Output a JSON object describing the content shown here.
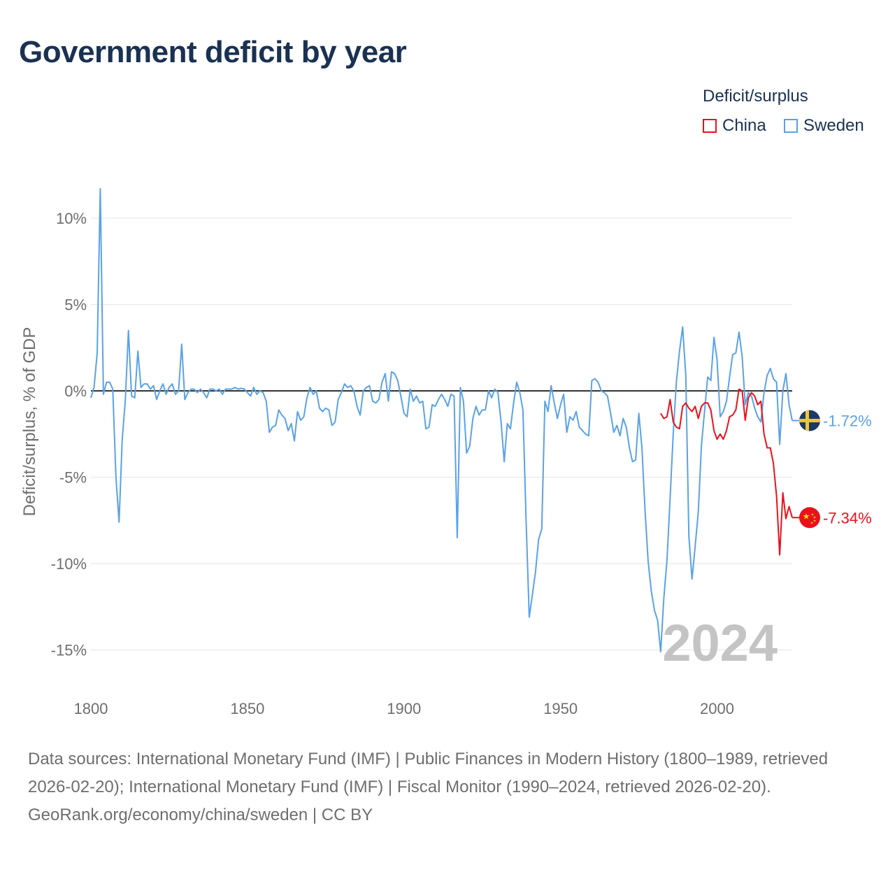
{
  "chart_data": {
    "type": "line",
    "title": "Government deficit by year",
    "ylabel": "Deficit/surplus, % of GDP",
    "xlabel": "",
    "xlim": [
      1800,
      2024
    ],
    "ylim": [
      -16.5,
      12
    ],
    "x_ticks": [
      1800,
      1850,
      1900,
      1950,
      2000
    ],
    "y_ticks": [
      10,
      5,
      0,
      -5,
      -10,
      -15
    ],
    "y_tick_labels": [
      "10%",
      "5%",
      "0%",
      "-5%",
      "-10%",
      "-15%"
    ],
    "legend_title": "Deficit/surplus",
    "watermark_year": "2024",
    "series": [
      {
        "name": "Sweden",
        "color": "#5aa2e6",
        "end_label": "-1.72%",
        "flag_icon": "sweden-flag-icon",
        "points": [
          [
            1800,
            -0.4
          ],
          [
            1801,
            0.2
          ],
          [
            1802,
            2.2
          ],
          [
            1803,
            11.7
          ],
          [
            1804,
            -0.2
          ],
          [
            1805,
            0.5
          ],
          [
            1806,
            0.5
          ],
          [
            1807,
            0.1
          ],
          [
            1808,
            -5.0
          ],
          [
            1809,
            -7.6
          ],
          [
            1810,
            -2.8
          ],
          [
            1811,
            -0.5
          ],
          [
            1812,
            3.5
          ],
          [
            1813,
            -0.3
          ],
          [
            1814,
            -0.4
          ],
          [
            1815,
            2.3
          ],
          [
            1816,
            0.2
          ],
          [
            1817,
            0.4
          ],
          [
            1818,
            0.4
          ],
          [
            1819,
            0.1
          ],
          [
            1820,
            0.3
          ],
          [
            1821,
            -0.5
          ],
          [
            1822,
            0.0
          ],
          [
            1823,
            0.4
          ],
          [
            1824,
            -0.2
          ],
          [
            1825,
            0.2
          ],
          [
            1826,
            0.4
          ],
          [
            1827,
            -0.2
          ],
          [
            1828,
            0.0
          ],
          [
            1829,
            2.7
          ],
          [
            1830,
            -0.5
          ],
          [
            1831,
            -0.1
          ],
          [
            1832,
            0.1
          ],
          [
            1833,
            0.1
          ],
          [
            1834,
            -0.1
          ],
          [
            1835,
            0.1
          ],
          [
            1836,
            -0.1
          ],
          [
            1837,
            -0.4
          ],
          [
            1838,
            0.1
          ],
          [
            1839,
            0.1
          ],
          [
            1840,
            0.0
          ],
          [
            1841,
            0.1
          ],
          [
            1842,
            -0.2
          ],
          [
            1843,
            0.1
          ],
          [
            1844,
            0.1
          ],
          [
            1845,
            0.1
          ],
          [
            1846,
            0.2
          ],
          [
            1847,
            0.1
          ],
          [
            1848,
            0.15
          ],
          [
            1849,
            0.1
          ],
          [
            1850,
            -0.1
          ],
          [
            1851,
            -0.3
          ],
          [
            1852,
            0.2
          ],
          [
            1853,
            -0.2
          ],
          [
            1854,
            0.0
          ],
          [
            1855,
            -0.1
          ],
          [
            1856,
            -0.6
          ],
          [
            1857,
            -2.4
          ],
          [
            1858,
            -2.1
          ],
          [
            1859,
            -2.0
          ],
          [
            1860,
            -1.1
          ],
          [
            1861,
            -1.4
          ],
          [
            1862,
            -1.6
          ],
          [
            1863,
            -2.3
          ],
          [
            1864,
            -1.9
          ],
          [
            1865,
            -2.9
          ],
          [
            1866,
            -1.2
          ],
          [
            1867,
            -1.7
          ],
          [
            1868,
            -1.5
          ],
          [
            1869,
            -0.4
          ],
          [
            1870,
            0.2
          ],
          [
            1871,
            -0.2
          ],
          [
            1872,
            0.0
          ],
          [
            1873,
            -1.0
          ],
          [
            1874,
            -1.2
          ],
          [
            1875,
            -1.0
          ],
          [
            1876,
            -1.1
          ],
          [
            1877,
            -2.0
          ],
          [
            1878,
            -1.8
          ],
          [
            1879,
            -0.5
          ],
          [
            1880,
            -0.1
          ],
          [
            1881,
            0.4
          ],
          [
            1882,
            0.2
          ],
          [
            1883,
            0.3
          ],
          [
            1884,
            0.0
          ],
          [
            1885,
            -0.9
          ],
          [
            1886,
            -1.4
          ],
          [
            1887,
            0.0
          ],
          [
            1888,
            0.2
          ],
          [
            1889,
            0.3
          ],
          [
            1890,
            -0.6
          ],
          [
            1891,
            -0.7
          ],
          [
            1892,
            -0.5
          ],
          [
            1893,
            0.5
          ],
          [
            1894,
            1.0
          ],
          [
            1895,
            -0.6
          ],
          [
            1896,
            1.1
          ],
          [
            1897,
            1.0
          ],
          [
            1898,
            0.6
          ],
          [
            1899,
            -0.3
          ],
          [
            1900,
            -1.3
          ],
          [
            1901,
            -1.5
          ],
          [
            1902,
            0.1
          ],
          [
            1903,
            -0.6
          ],
          [
            1904,
            -0.3
          ],
          [
            1905,
            -0.7
          ],
          [
            1906,
            -0.6
          ],
          [
            1907,
            -2.2
          ],
          [
            1908,
            -2.1
          ],
          [
            1909,
            -0.8
          ],
          [
            1910,
            -0.9
          ],
          [
            1911,
            -0.5
          ],
          [
            1912,
            -0.2
          ],
          [
            1913,
            -0.5
          ],
          [
            1914,
            -0.9
          ],
          [
            1915,
            -0.2
          ],
          [
            1916,
            -0.3
          ],
          [
            1917,
            -8.5
          ],
          [
            1918,
            0.2
          ],
          [
            1919,
            -0.6
          ],
          [
            1920,
            -3.6
          ],
          [
            1921,
            -3.2
          ],
          [
            1922,
            -1.6
          ],
          [
            1923,
            -0.9
          ],
          [
            1924,
            -1.4
          ],
          [
            1925,
            -1.1
          ],
          [
            1926,
            -1.1
          ],
          [
            1927,
            0.0
          ],
          [
            1928,
            -0.4
          ],
          [
            1929,
            0.1
          ],
          [
            1930,
            -0.1
          ],
          [
            1931,
            -1.8
          ],
          [
            1932,
            -4.1
          ],
          [
            1933,
            -1.9
          ],
          [
            1934,
            -2.2
          ],
          [
            1935,
            -0.7
          ],
          [
            1936,
            0.5
          ],
          [
            1937,
            -0.1
          ],
          [
            1938,
            -1.1
          ],
          [
            1939,
            -7.5
          ],
          [
            1940,
            -13.1
          ],
          [
            1941,
            -11.8
          ],
          [
            1942,
            -10.5
          ],
          [
            1943,
            -8.6
          ],
          [
            1944,
            -8.0
          ],
          [
            1945,
            -0.6
          ],
          [
            1946,
            -1.2
          ],
          [
            1947,
            0.3
          ],
          [
            1948,
            -0.7
          ],
          [
            1949,
            -1.6
          ],
          [
            1950,
            -0.8
          ],
          [
            1951,
            -0.2
          ],
          [
            1952,
            -2.4
          ],
          [
            1953,
            -1.5
          ],
          [
            1954,
            -1.7
          ],
          [
            1955,
            -1.2
          ],
          [
            1956,
            -2.1
          ],
          [
            1957,
            -2.3
          ],
          [
            1958,
            -2.5
          ],
          [
            1959,
            -2.6
          ],
          [
            1960,
            0.6
          ],
          [
            1961,
            0.7
          ],
          [
            1962,
            0.5
          ],
          [
            1963,
            0.0
          ],
          [
            1964,
            -0.1
          ],
          [
            1965,
            -0.3
          ],
          [
            1966,
            -1.3
          ],
          [
            1967,
            -2.4
          ],
          [
            1968,
            -2.0
          ],
          [
            1969,
            -2.6
          ],
          [
            1970,
            -1.6
          ],
          [
            1971,
            -2.1
          ],
          [
            1972,
            -3.3
          ],
          [
            1973,
            -4.1
          ],
          [
            1974,
            -4.0
          ],
          [
            1975,
            -1.3
          ],
          [
            1976,
            -3.3
          ],
          [
            1977,
            -6.9
          ],
          [
            1978,
            -9.9
          ],
          [
            1979,
            -11.6
          ],
          [
            1980,
            -12.7
          ],
          [
            1981,
            -13.3
          ],
          [
            1982,
            -15.1
          ],
          [
            1983,
            -12.0
          ],
          [
            1984,
            -9.8
          ],
          [
            1985,
            -6.2
          ],
          [
            1986,
            -2.5
          ],
          [
            1987,
            0.5
          ],
          [
            1988,
            2.3
          ],
          [
            1989,
            3.7
          ],
          [
            1990,
            0.9
          ],
          [
            1991,
            -8.4
          ],
          [
            1992,
            -10.9
          ],
          [
            1993,
            -9.0
          ],
          [
            1994,
            -7.0
          ],
          [
            1995,
            -3.2
          ],
          [
            1996,
            -1.2
          ],
          [
            1997,
            0.8
          ],
          [
            1998,
            0.6
          ],
          [
            1999,
            3.1
          ],
          [
            2000,
            1.8
          ],
          [
            2001,
            -1.5
          ],
          [
            2002,
            -1.2
          ],
          [
            2003,
            -0.6
          ],
          [
            2004,
            0.8
          ],
          [
            2005,
            2.1
          ],
          [
            2006,
            2.2
          ],
          [
            2007,
            3.4
          ],
          [
            2008,
            2.0
          ],
          [
            2009,
            -0.8
          ],
          [
            2010,
            -0.1
          ],
          [
            2011,
            -0.3
          ],
          [
            2012,
            -1.0
          ],
          [
            2013,
            -1.5
          ],
          [
            2014,
            -1.8
          ],
          [
            2015,
            -0.1
          ],
          [
            2016,
            0.9
          ],
          [
            2017,
            1.3
          ],
          [
            2018,
            0.7
          ],
          [
            2019,
            0.5
          ],
          [
            2020,
            -3.1
          ],
          [
            2021,
            0.0
          ],
          [
            2022,
            1.0
          ],
          [
            2023,
            -0.8
          ],
          [
            2024,
            -1.72
          ]
        ]
      },
      {
        "name": "China",
        "color": "#e8121c",
        "end_label": "-7.34%",
        "flag_icon": "china-flag-icon",
        "points": [
          [
            1982,
            -1.3
          ],
          [
            1983,
            -1.6
          ],
          [
            1984,
            -1.5
          ],
          [
            1985,
            -0.5
          ],
          [
            1986,
            -1.8
          ],
          [
            1987,
            -2.1
          ],
          [
            1988,
            -2.2
          ],
          [
            1989,
            -0.9
          ],
          [
            1990,
            -0.7
          ],
          [
            1991,
            -1.0
          ],
          [
            1992,
            -1.2
          ],
          [
            1993,
            -0.9
          ],
          [
            1994,
            -1.6
          ],
          [
            1995,
            -0.9
          ],
          [
            1996,
            -0.7
          ],
          [
            1997,
            -0.7
          ],
          [
            1998,
            -1.1
          ],
          [
            1999,
            -2.3
          ],
          [
            2000,
            -2.8
          ],
          [
            2001,
            -2.5
          ],
          [
            2002,
            -2.8
          ],
          [
            2003,
            -2.3
          ],
          [
            2004,
            -1.5
          ],
          [
            2005,
            -1.4
          ],
          [
            2006,
            -1.1
          ],
          [
            2007,
            0.1
          ],
          [
            2008,
            0.0
          ],
          [
            2009,
            -1.7
          ],
          [
            2010,
            -0.4
          ],
          [
            2011,
            -0.1
          ],
          [
            2012,
            -0.3
          ],
          [
            2013,
            -0.8
          ],
          [
            2014,
            -0.6
          ],
          [
            2015,
            -2.5
          ],
          [
            2016,
            -3.3
          ],
          [
            2017,
            -3.3
          ],
          [
            2018,
            -4.2
          ],
          [
            2019,
            -6.1
          ],
          [
            2020,
            -9.5
          ],
          [
            2021,
            -5.9
          ],
          [
            2022,
            -7.4
          ],
          [
            2023,
            -6.7
          ],
          [
            2024,
            -7.34
          ]
        ]
      }
    ]
  },
  "footer": {
    "sources": "Data sources: International Monetary Fund (IMF) | Public Finances in Modern History (1800–1989, retrieved 2026-02-20); International Monetary Fund (IMF) | Fiscal Monitor (1990–2024, retrieved 2026-02-20).",
    "credit": "GeoRank.org/economy/china/sweden | CC BY"
  }
}
